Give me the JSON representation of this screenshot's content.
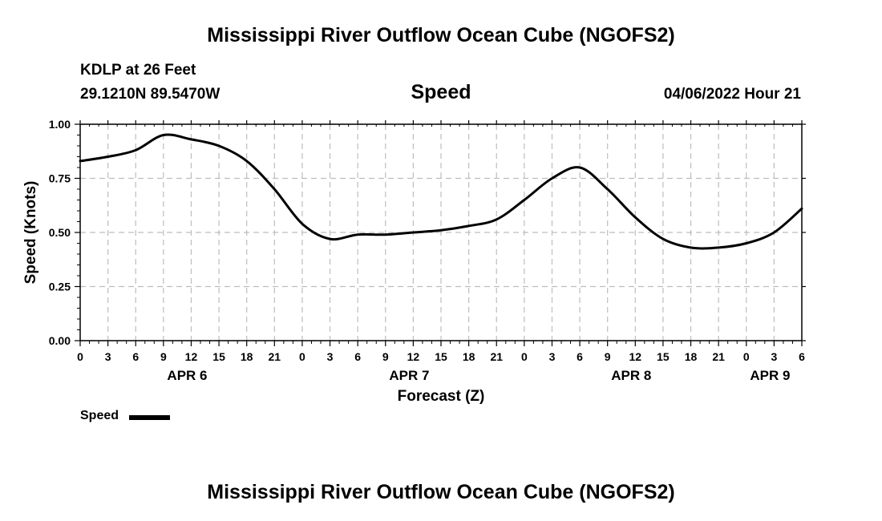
{
  "page": {
    "title_top": "Mississippi River Outflow Ocean Cube (NGOFS2)",
    "title_bottom": "Mississippi River Outflow Ocean Cube (NGOFS2)",
    "station": "KDLP at 26 Feet",
    "location": "29.1210N  89.5470W",
    "datetime": "04/06/2022 Hour 21"
  },
  "chart_data": {
    "type": "line",
    "title": "Speed",
    "xlabel": "Forecast (Z)",
    "ylabel": "Speed (Knots)",
    "ylim": [
      0,
      1
    ],
    "yticks": [
      "0.00",
      "0.25",
      "0.50",
      "0.75",
      "1.00"
    ],
    "xticks": [
      "0",
      "3",
      "6",
      "9",
      "12",
      "15",
      "18",
      "21",
      "0",
      "3",
      "6",
      "9",
      "12",
      "15",
      "18",
      "21",
      "0",
      "3",
      "6",
      "9",
      "12",
      "15",
      "18",
      "21",
      "0",
      "3",
      "6"
    ],
    "date_labels": [
      {
        "label": "APR 6",
        "hour_index": 4
      },
      {
        "label": "APR 7",
        "hour_index": 12
      },
      {
        "label": "APR 8",
        "hour_index": 20
      },
      {
        "label": "APR 9",
        "hour_index": 25
      }
    ],
    "grid": true,
    "legend": "bottom-left",
    "series": [
      {
        "name": "Speed",
        "color": "#000000",
        "x_hours": [
          0,
          3,
          6,
          9,
          12,
          15,
          18,
          21,
          24,
          27,
          30,
          33,
          36,
          39,
          42,
          45,
          48,
          51,
          54,
          57,
          60,
          63,
          66,
          69,
          72,
          75,
          78
        ],
        "values": [
          0.83,
          0.85,
          0.88,
          0.95,
          0.93,
          0.9,
          0.83,
          0.7,
          0.54,
          0.47,
          0.49,
          0.49,
          0.5,
          0.51,
          0.53,
          0.56,
          0.65,
          0.75,
          0.8,
          0.7,
          0.57,
          0.47,
          0.43,
          0.43,
          0.45,
          0.5,
          0.61
        ]
      }
    ]
  }
}
